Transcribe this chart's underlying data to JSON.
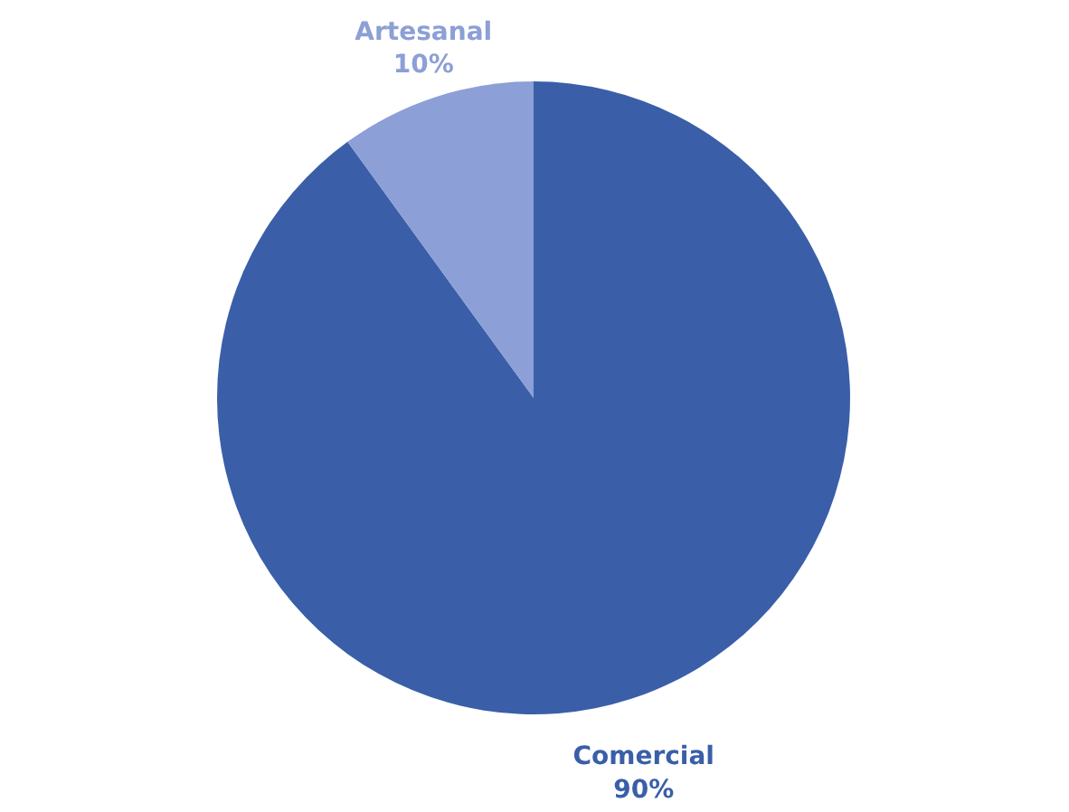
{
  "chart_data": {
    "type": "pie",
    "categories": [
      "Comercial",
      "Artesanal"
    ],
    "values": [
      90,
      10
    ],
    "colors": [
      "#3a5fa8",
      "#8c9fd6"
    ],
    "value_labels": [
      "90%",
      "10%"
    ]
  }
}
